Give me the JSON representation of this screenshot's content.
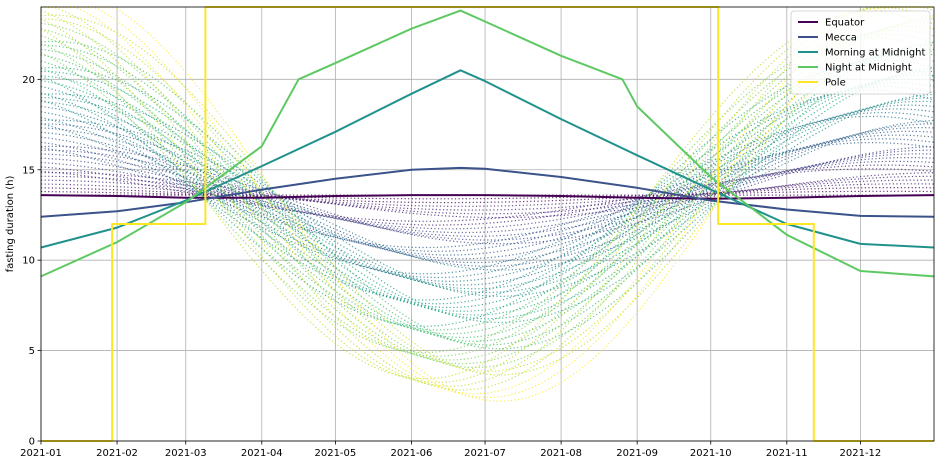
{
  "chart_data": {
    "type": "line",
    "title": "",
    "xlabel": "",
    "ylabel": "fasting duration (h)",
    "xlim": [
      "2021-01-01",
      "2021-12-31"
    ],
    "ylim": [
      0,
      24
    ],
    "grid": true,
    "legend_position": "top-right",
    "x_tick_labels": [
      "2021-01",
      "2021-02",
      "2021-03",
      "2021-04",
      "2021-05",
      "2021-06",
      "2021-07",
      "2021-08",
      "2021-09",
      "2021-10",
      "2021-11",
      "2021-12"
    ],
    "y_ticks": [
      0,
      5,
      10,
      15,
      20
    ],
    "colormap": "viridis",
    "series": [
      {
        "name": "Equator",
        "color": "#440154",
        "x": [
          "2021-01-01",
          "2021-02-01",
          "2021-03-01",
          "2021-04-01",
          "2021-05-01",
          "2021-06-01",
          "2021-06-21",
          "2021-07-01",
          "2021-08-01",
          "2021-09-01",
          "2021-10-01",
          "2021-11-01",
          "2021-12-01",
          "2021-12-31"
        ],
        "y": [
          13.6,
          13.55,
          13.45,
          13.45,
          13.55,
          13.6,
          13.6,
          13.6,
          13.55,
          13.45,
          13.4,
          13.45,
          13.55,
          13.6
        ]
      },
      {
        "name": "Mecca",
        "color": "#3b528b",
        "x": [
          "2021-01-01",
          "2021-02-01",
          "2021-03-01",
          "2021-04-01",
          "2021-05-01",
          "2021-06-01",
          "2021-06-21",
          "2021-07-01",
          "2021-08-01",
          "2021-09-01",
          "2021-10-01",
          "2021-11-01",
          "2021-12-01",
          "2021-12-31"
        ],
        "y": [
          12.4,
          12.7,
          13.2,
          13.9,
          14.5,
          15.0,
          15.1,
          15.05,
          14.6,
          14.0,
          13.3,
          12.8,
          12.45,
          12.4
        ]
      },
      {
        "name": "Morning at Midnight",
        "color": "#21918c",
        "x": [
          "2021-01-01",
          "2021-02-01",
          "2021-03-01",
          "2021-04-01",
          "2021-05-01",
          "2021-06-01",
          "2021-06-21",
          "2021-07-01",
          "2021-08-01",
          "2021-09-01",
          "2021-10-01",
          "2021-11-01",
          "2021-12-01",
          "2021-12-31"
        ],
        "y": [
          10.7,
          11.8,
          13.3,
          15.2,
          17.1,
          19.2,
          20.5,
          19.9,
          17.8,
          15.8,
          13.9,
          12.0,
          10.9,
          10.7
        ]
      },
      {
        "name": "Night at Midnight",
        "color": "#5ec962",
        "x": [
          "2021-01-01",
          "2021-02-01",
          "2021-03-01",
          "2021-04-01",
          "2021-04-16",
          "2021-05-01",
          "2021-06-01",
          "2021-06-21",
          "2021-07-01",
          "2021-08-01",
          "2021-08-26",
          "2021-09-01",
          "2021-10-01",
          "2021-11-01",
          "2021-12-01",
          "2021-12-31"
        ],
        "y": [
          9.1,
          11.0,
          13.2,
          16.3,
          20.0,
          20.9,
          22.8,
          23.8,
          23.2,
          21.3,
          20.0,
          18.5,
          14.6,
          11.4,
          9.4,
          9.1
        ]
      },
      {
        "name": "Pole",
        "color": "#fde725",
        "x": [
          "2021-01-01",
          "2021-01-30",
          "2021-01-30",
          "2021-02-20",
          "2021-03-09",
          "2021-03-09",
          "2021-10-04",
          "2021-10-04",
          "2021-10-25",
          "2021-11-12",
          "2021-11-12",
          "2021-12-31"
        ],
        "y": [
          0,
          0,
          12,
          12,
          12,
          24,
          24,
          12,
          12,
          12,
          0,
          0
        ]
      }
    ]
  }
}
